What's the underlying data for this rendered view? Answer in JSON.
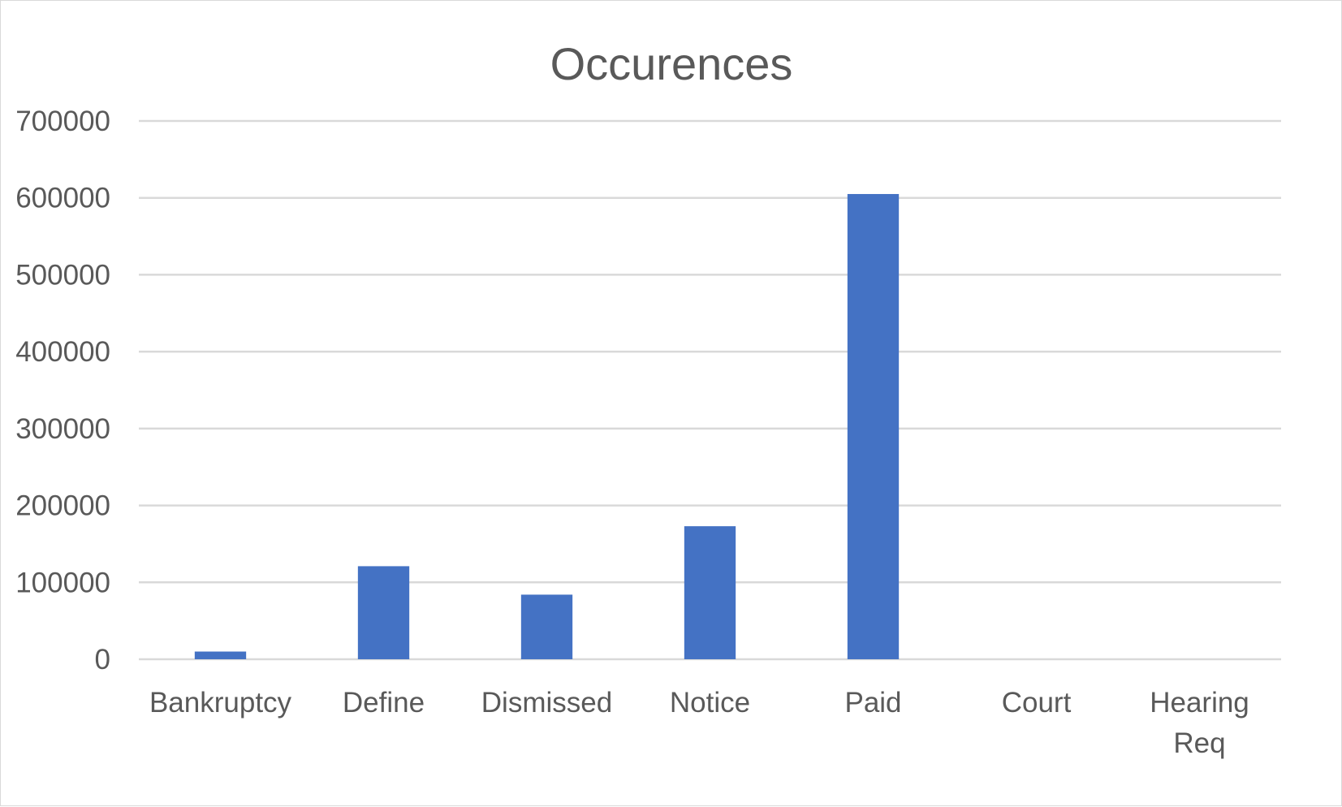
{
  "chart_data": {
    "type": "bar",
    "title": "Occurences",
    "xlabel": "",
    "ylabel": "",
    "categories": [
      "Bankruptcy",
      "Define",
      "Dismissed",
      "Notice",
      "Paid",
      "Court",
      "Hearing Req"
    ],
    "values": [
      10000,
      121000,
      84000,
      173000,
      605000,
      0,
      0
    ],
    "ylim": [
      0,
      700000
    ],
    "yticks": [
      "0",
      "100000",
      "200000",
      "300000",
      "400000",
      "500000",
      "600000",
      "700000"
    ],
    "grid": true,
    "legend": "none",
    "bar_color": "#4472C4",
    "grid_color": "#d9d9d9",
    "text_color": "#595959"
  }
}
